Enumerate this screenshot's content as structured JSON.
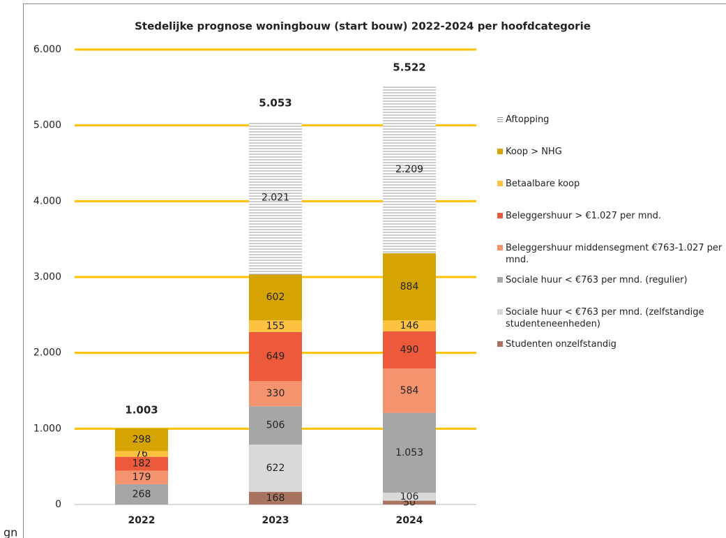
{
  "chart_data": {
    "type": "stacked_bar",
    "title": "Stedelijke prognose woningbouw  (start bouw) 2022-2024 per hoofdcategorie",
    "categories": [
      "2022",
      "2023",
      "2024"
    ],
    "series": [
      {
        "name": "Studenten onzelfstandig",
        "color": "#a8735f",
        "values": [
          0,
          168,
          50
        ]
      },
      {
        "name": "Sociale huur < €763 per mnd.  (zelfstandige studenteneenheden)",
        "color": "#d9d9d9",
        "values": [
          0,
          622,
          106
        ]
      },
      {
        "name": "Sociale huur < €763 per mnd. (regulier)",
        "color": "#a6a6a6",
        "values": [
          268,
          506,
          1053
        ],
        "value_labels": [
          "268",
          "506",
          "1.053"
        ]
      },
      {
        "name": "Beleggershuur middensegment €763-1.027 per mnd.",
        "color": "#f4946e",
        "values": [
          179,
          330,
          584
        ]
      },
      {
        "name": "Beleggershuur > €1.027 per mnd.",
        "color": "#ec5a3b",
        "values": [
          182,
          649,
          490
        ]
      },
      {
        "name": "Betaalbare koop",
        "color": "#fdc240",
        "values": [
          76,
          155,
          146
        ]
      },
      {
        "name": "Koop  > NHG",
        "color": "#d6a400",
        "values": [
          298,
          602,
          884
        ]
      },
      {
        "name": "Aftopping",
        "color": "pattern",
        "values": [
          0,
          2021,
          2209
        ],
        "value_labels": [
          null,
          "2.021",
          "2.209"
        ]
      }
    ],
    "totals": [
      {
        "value": 1003,
        "label": "1.003"
      },
      {
        "value": 5053,
        "label": "5.053"
      },
      {
        "value": 5522,
        "label": "5.522"
      }
    ],
    "ylim": [
      0,
      6000
    ],
    "yticks": [
      0,
      {
        "value": 1000,
        "label": "1.000"
      },
      {
        "value": 2000,
        "label": "2.000"
      },
      {
        "value": 3000,
        "label": "3.000"
      },
      {
        "value": 4000,
        "label": "4.000"
      },
      {
        "value": 5000,
        "label": "5.000"
      },
      {
        "value": 6000,
        "label": "6.000"
      }
    ],
    "grid": true,
    "grid_color": "#ffc000",
    "legend": "right",
    "annotations": [
      "gn"
    ]
  }
}
